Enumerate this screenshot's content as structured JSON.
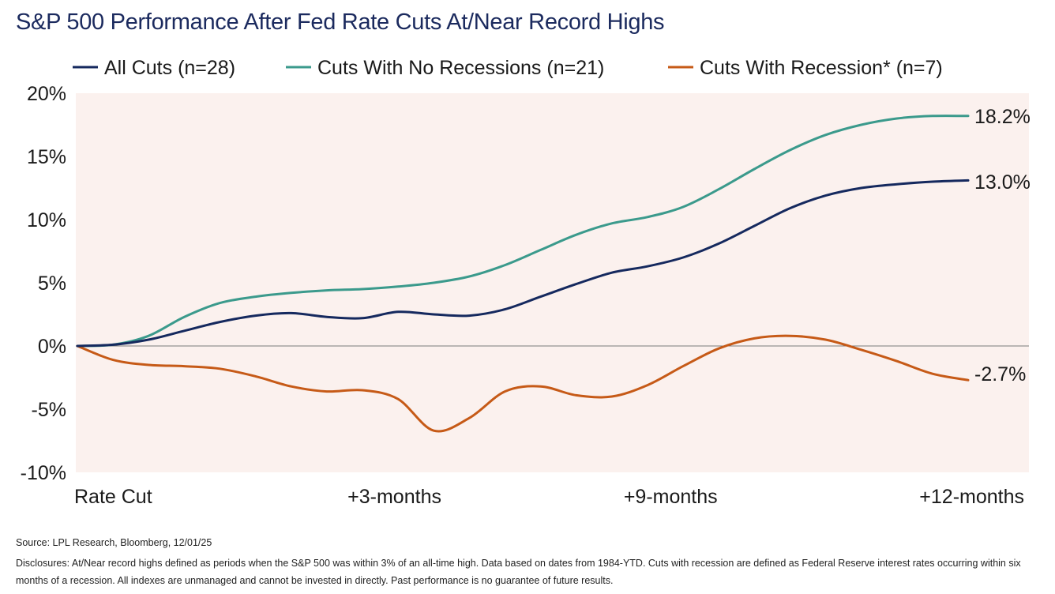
{
  "title": "S&P 500 Performance After Fed Rate Cuts At/Near Record Highs",
  "source": "Source: LPL Research, Bloomberg, 12/01/25",
  "disclosures": "Disclosures: At/Near record highs defined as periods when the S&P 500 was within 3% of an all-time high. Data based on dates from 1984-YTD. Cuts with recession are defined as Federal Reserve interest rates occurring within six months of a recession. All indexes are unmanaged and cannot be invested in directly. Past performance is no guarantee of future results.",
  "colors": {
    "plot_background": "#fbf1ee",
    "zero_line": "#7a7a7a"
  },
  "chart_data": {
    "type": "line",
    "title": "S&P 500 Performance After Fed Rate Cuts At/Near Record Highs",
    "xlabel": "",
    "ylabel": "",
    "ylim": [
      -10,
      20
    ],
    "yticks": [
      20,
      15,
      10,
      5,
      0,
      -5,
      -10
    ],
    "ytick_labels": [
      "20%",
      "15%",
      "10%",
      "5%",
      "0%",
      "-5%",
      "-10%"
    ],
    "xtick_labels": [
      "Rate Cut",
      "+3-months",
      "+9-months",
      "+12-months"
    ],
    "xtick_positions": [
      0,
      0.356,
      0.666,
      1.0
    ],
    "legend_position": "top",
    "grid": false,
    "series": [
      {
        "name": "All Cuts (n=28)",
        "color": "#15295e",
        "end_label": "13.0%",
        "x": [
          0,
          0.04,
          0.08,
          0.12,
          0.16,
          0.2,
          0.24,
          0.28,
          0.32,
          0.36,
          0.4,
          0.44,
          0.48,
          0.52,
          0.56,
          0.6,
          0.64,
          0.68,
          0.72,
          0.76,
          0.8,
          0.84,
          0.88,
          0.92,
          0.96,
          1.0
        ],
        "values": [
          0,
          0.1,
          0.5,
          1.2,
          1.9,
          2.4,
          2.6,
          2.3,
          2.2,
          2.7,
          2.5,
          2.4,
          2.9,
          3.9,
          4.9,
          5.8,
          6.3,
          7.0,
          8.1,
          9.5,
          10.9,
          11.9,
          12.5,
          12.8,
          13.0,
          13.1
        ]
      },
      {
        "name": "Cuts With No Recessions (n=21)",
        "color": "#3b9a8c",
        "end_label": "18.2%",
        "x": [
          0,
          0.04,
          0.08,
          0.12,
          0.16,
          0.2,
          0.24,
          0.28,
          0.32,
          0.36,
          0.4,
          0.44,
          0.48,
          0.52,
          0.56,
          0.6,
          0.64,
          0.68,
          0.72,
          0.76,
          0.8,
          0.84,
          0.88,
          0.92,
          0.96,
          1.0
        ],
        "values": [
          0,
          0.1,
          0.8,
          2.3,
          3.4,
          3.9,
          4.2,
          4.4,
          4.5,
          4.7,
          5.0,
          5.5,
          6.4,
          7.6,
          8.8,
          9.7,
          10.2,
          11.0,
          12.4,
          14.0,
          15.5,
          16.7,
          17.5,
          18.0,
          18.2,
          18.2
        ]
      },
      {
        "name": "Cuts With Recession* (n=7)",
        "color": "#c65a17",
        "end_label": "-2.7%",
        "x": [
          0,
          0.04,
          0.08,
          0.12,
          0.16,
          0.2,
          0.24,
          0.28,
          0.32,
          0.36,
          0.4,
          0.44,
          0.48,
          0.52,
          0.56,
          0.6,
          0.64,
          0.68,
          0.72,
          0.76,
          0.8,
          0.84,
          0.88,
          0.92,
          0.96,
          1.0
        ],
        "values": [
          0,
          -1.1,
          -1.5,
          -1.6,
          -1.8,
          -2.4,
          -3.2,
          -3.6,
          -3.5,
          -4.2,
          -6.7,
          -5.7,
          -3.6,
          -3.2,
          -3.9,
          -4.0,
          -3.1,
          -1.6,
          -0.2,
          0.6,
          0.8,
          0.5,
          -0.3,
          -1.2,
          -2.2,
          -2.7
        ]
      }
    ]
  }
}
